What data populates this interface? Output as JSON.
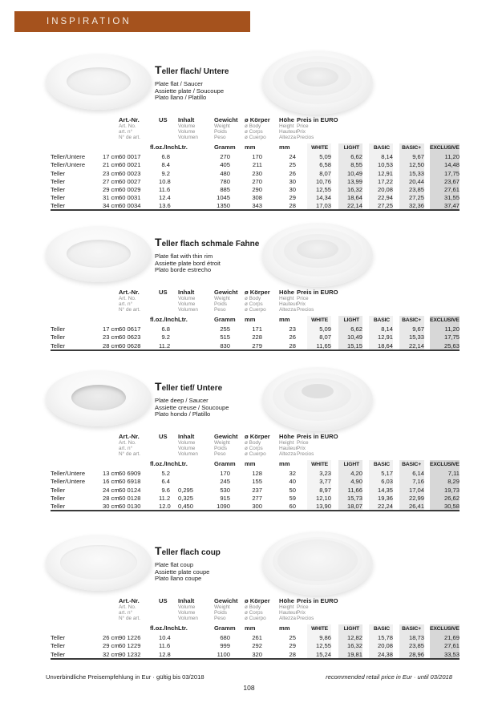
{
  "page": {
    "header": {
      "title": "INSPIRATION",
      "bar_color": "#a5521d"
    },
    "footer": {
      "left": "Unverbindliche Preisempfehlung in Eur · gültig bis 03/2018",
      "right": "recommended retail price in Eur · until 03/2018",
      "page_number": "108"
    }
  },
  "table_header": {
    "columns": {
      "art_nr": {
        "label": "Art.-Nr.",
        "sub": [
          "Art. No.",
          "art. n°",
          "N° de art."
        ]
      },
      "us": {
        "label": "US",
        "unit": "fl.oz./Inch"
      },
      "inhalt": {
        "label": "Inhalt",
        "sub": [
          "Volume",
          "Volume",
          "Volumen"
        ],
        "unit": "Ltr."
      },
      "gewicht": {
        "label": "Gewicht",
        "sub": [
          "Weight",
          "Poids",
          "Peso"
        ],
        "unit": "Gramm"
      },
      "koerper": {
        "label": "ø Körper",
        "sub": [
          "ø Body",
          "ø Corps",
          "ø Cuerpo"
        ],
        "unit": "mm"
      },
      "hoehe": {
        "label": "Höhe",
        "sub": [
          "Height",
          "Hauteur",
          "Altezza"
        ],
        "unit": "mm"
      },
      "preis": {
        "label": "Preis in EURO",
        "sub": [
          "Price",
          "Prix",
          "Precios"
        ]
      }
    },
    "price_levels": [
      "WHITE",
      "LIGHT",
      "BASIC",
      "BASIC+",
      "EXCLUSIVE"
    ]
  },
  "sections": [
    {
      "title": "Teller flach/ Untere",
      "descriptions": [
        "Plate flat / Saucer",
        "Assiette plate / Soucoupe",
        "Plato llano / Platillo"
      ],
      "rows": [
        {
          "name": "Teller/Untere",
          "size": "17 cm",
          "art_nr": "60 0017",
          "us": "6.8",
          "ltr": "",
          "gramm": "270",
          "koerper": "170",
          "hoehe": "24",
          "prices": [
            "5,09",
            "6,62",
            "8,14",
            "9,67",
            "11,20"
          ]
        },
        {
          "name": "Teller/Untere",
          "size": "21 cm",
          "art_nr": "60 0021",
          "us": "8.4",
          "ltr": "",
          "gramm": "405",
          "koerper": "211",
          "hoehe": "25",
          "prices": [
            "6,58",
            "8,55",
            "10,53",
            "12,50",
            "14,48"
          ]
        },
        {
          "name": "Teller",
          "size": "23 cm",
          "art_nr": "60 0023",
          "us": "9.2",
          "ltr": "",
          "gramm": "480",
          "koerper": "230",
          "hoehe": "26",
          "prices": [
            "8,07",
            "10,49",
            "12,91",
            "15,33",
            "17,75"
          ]
        },
        {
          "name": "Teller",
          "size": "27 cm",
          "art_nr": "60 0027",
          "us": "10.8",
          "ltr": "",
          "gramm": "780",
          "koerper": "270",
          "hoehe": "30",
          "prices": [
            "10,76",
            "13,99",
            "17,22",
            "20,44",
            "23,67"
          ]
        },
        {
          "name": "Teller",
          "size": "29 cm",
          "art_nr": "60 0029",
          "us": "11.6",
          "ltr": "",
          "gramm": "885",
          "koerper": "290",
          "hoehe": "30",
          "prices": [
            "12,55",
            "16,32",
            "20,08",
            "23,85",
            "27,61"
          ]
        },
        {
          "name": "Teller",
          "size": "31 cm",
          "art_nr": "60 0031",
          "us": "12.4",
          "ltr": "",
          "gramm": "1045",
          "koerper": "308",
          "hoehe": "29",
          "prices": [
            "14,34",
            "18,64",
            "22,94",
            "27,25",
            "31,55"
          ]
        },
        {
          "name": "Teller",
          "size": "34 cm",
          "art_nr": "60 0034",
          "us": "13.6",
          "ltr": "",
          "gramm": "1350",
          "koerper": "343",
          "hoehe": "28",
          "prices": [
            "17,03",
            "22,14",
            "27,25",
            "32,36",
            "37,47"
          ]
        }
      ]
    },
    {
      "title": "Teller flach schmale Fahne",
      "descriptions": [
        "Plate flat with thin rim",
        "Assiette plate bord étroit",
        "Plato borde estrecho"
      ],
      "rows": [
        {
          "name": "Teller",
          "size": "17 cm",
          "art_nr": "60 0617",
          "us": "6.8",
          "ltr": "",
          "gramm": "255",
          "koerper": "171",
          "hoehe": "23",
          "prices": [
            "5,09",
            "6,62",
            "8,14",
            "9,67",
            "11,20"
          ]
        },
        {
          "name": "Teller",
          "size": "23 cm",
          "art_nr": "60 0623",
          "us": "9.2",
          "ltr": "",
          "gramm": "515",
          "koerper": "228",
          "hoehe": "26",
          "prices": [
            "8,07",
            "10,49",
            "12,91",
            "15,33",
            "17,75"
          ]
        },
        {
          "name": "Teller",
          "size": "28 cm",
          "art_nr": "60 0628",
          "us": "11.2",
          "ltr": "",
          "gramm": "830",
          "koerper": "279",
          "hoehe": "28",
          "prices": [
            "11,65",
            "15,15",
            "18,64",
            "22,14",
            "25,63"
          ]
        }
      ]
    },
    {
      "title": "Teller tief/ Untere",
      "descriptions": [
        "Plate deep / Saucer",
        "Assiette creuse / Soucoupe",
        "Plato hondo / Platillo"
      ],
      "rows": [
        {
          "name": "Teller/Untere",
          "size": "13 cm",
          "art_nr": "60 6909",
          "us": "5.2",
          "ltr": "",
          "gramm": "170",
          "koerper": "128",
          "hoehe": "32",
          "prices": [
            "3,23",
            "4,20",
            "5,17",
            "6,14",
            "7,11"
          ]
        },
        {
          "name": "Teller/Untere",
          "size": "16 cm",
          "art_nr": "60 6918",
          "us": "6.4",
          "ltr": "",
          "gramm": "245",
          "koerper": "155",
          "hoehe": "40",
          "prices": [
            "3,77",
            "4,90",
            "6,03",
            "7,16",
            "8,29"
          ]
        },
        {
          "name": "Teller",
          "size": "24 cm",
          "art_nr": "60 0124",
          "us": "9.6",
          "ltr": "0,295",
          "gramm": "530",
          "koerper": "237",
          "hoehe": "50",
          "prices": [
            "8,97",
            "11,66",
            "14,35",
            "17,04",
            "19,73"
          ]
        },
        {
          "name": "Teller",
          "size": "28 cm",
          "art_nr": "60 0128",
          "us": "11.2",
          "ltr": "0,325",
          "gramm": "915",
          "koerper": "277",
          "hoehe": "59",
          "prices": [
            "12,10",
            "15,73",
            "19,36",
            "22,99",
            "26,62"
          ]
        },
        {
          "name": "Teller",
          "size": "30 cm",
          "art_nr": "60 0130",
          "us": "12.0",
          "ltr": "0,450",
          "gramm": "1090",
          "koerper": "300",
          "hoehe": "60",
          "prices": [
            "13,90",
            "18,07",
            "22,24",
            "26,41",
            "30,58"
          ]
        }
      ]
    },
    {
      "title": "Teller flach coup",
      "descriptions": [
        "Plate flat coup",
        "Assiette plate coupe",
        "Plato llano coupe"
      ],
      "rows": [
        {
          "name": "Teller",
          "size": "26 cm",
          "art_nr": "90 1226",
          "us": "10.4",
          "ltr": "",
          "gramm": "680",
          "koerper": "261",
          "hoehe": "25",
          "prices": [
            "9,86",
            "12,82",
            "15,78",
            "18,73",
            "21,69"
          ]
        },
        {
          "name": "Teller",
          "size": "29 cm",
          "art_nr": "60 1229",
          "us": "11.6",
          "ltr": "",
          "gramm": "999",
          "koerper": "292",
          "hoehe": "29",
          "prices": [
            "12,55",
            "16,32",
            "20,08",
            "23,85",
            "27,61"
          ]
        },
        {
          "name": "Teller",
          "size": "32 cm",
          "art_nr": "90 1232",
          "us": "12.8",
          "ltr": "",
          "gramm": "1100",
          "koerper": "320",
          "hoehe": "28",
          "prices": [
            "15,24",
            "19,81",
            "24,38",
            "28,96",
            "33,53"
          ]
        }
      ]
    }
  ]
}
